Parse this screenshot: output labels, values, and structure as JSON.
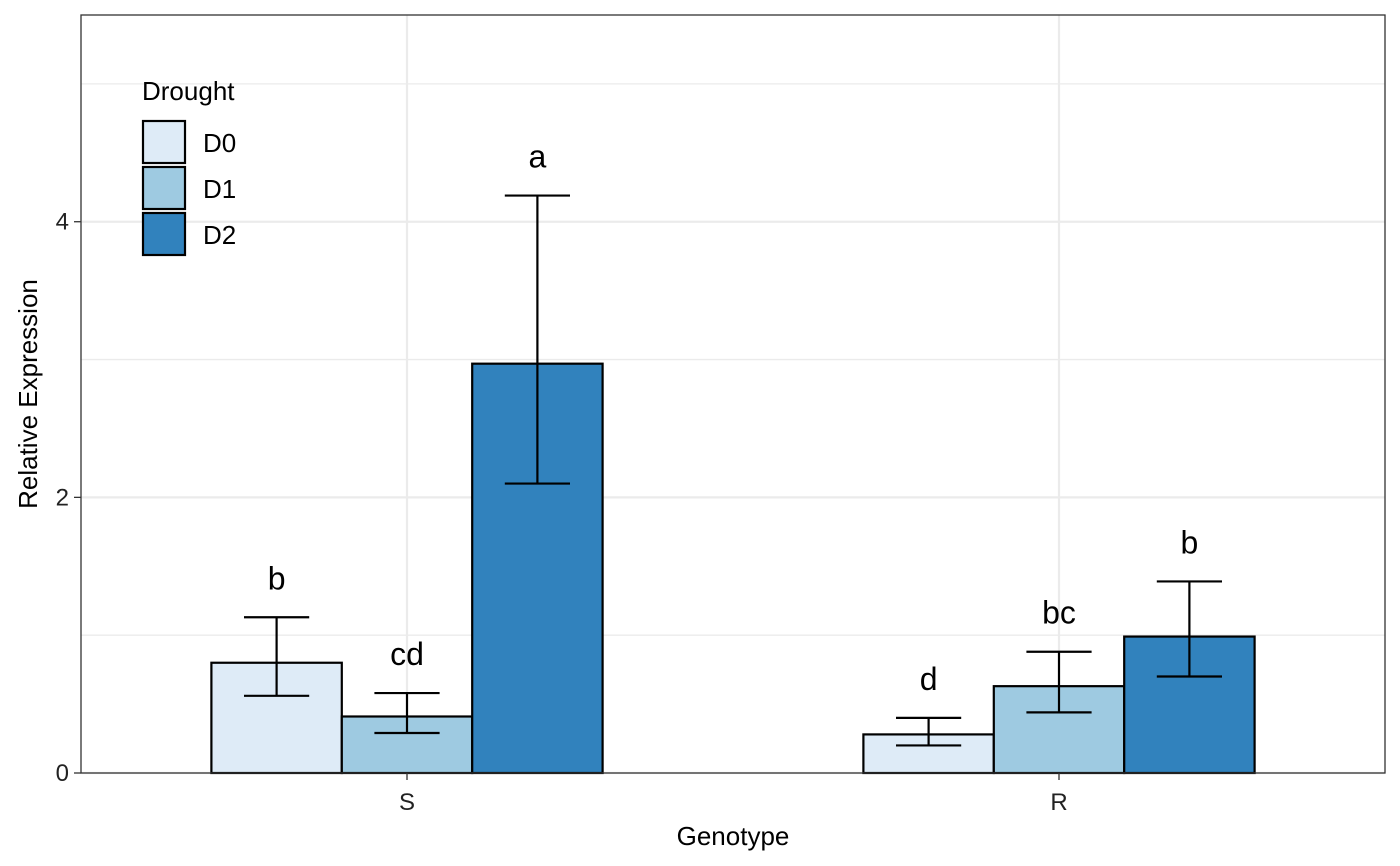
{
  "chart_data": {
    "type": "bar",
    "xlabel": "Genotype",
    "ylabel": "Relative Expression",
    "categories": [
      "S",
      "R"
    ],
    "ylim": [
      0,
      5.5
    ],
    "yticks": [
      0,
      2,
      4
    ],
    "grid": true,
    "legend": {
      "title": "Drought",
      "position": "top-left"
    },
    "series": [
      {
        "name": "D0",
        "color": "#DEEBF7",
        "values": [
          0.8,
          0.28
        ],
        "err_low": [
          0.56,
          0.2
        ],
        "err_high": [
          1.13,
          0.4
        ],
        "labels": [
          "b",
          "d"
        ]
      },
      {
        "name": "D1",
        "color": "#9ECAE1",
        "values": [
          0.41,
          0.63
        ],
        "err_low": [
          0.29,
          0.44
        ],
        "err_high": [
          0.58,
          0.88
        ],
        "labels": [
          "cd",
          "bc"
        ]
      },
      {
        "name": "D2",
        "color": "#3182BD",
        "values": [
          2.97,
          0.99
        ],
        "err_low": [
          2.1,
          0.7
        ],
        "err_high": [
          4.19,
          1.39
        ],
        "labels": [
          "a",
          "b"
        ]
      }
    ]
  }
}
